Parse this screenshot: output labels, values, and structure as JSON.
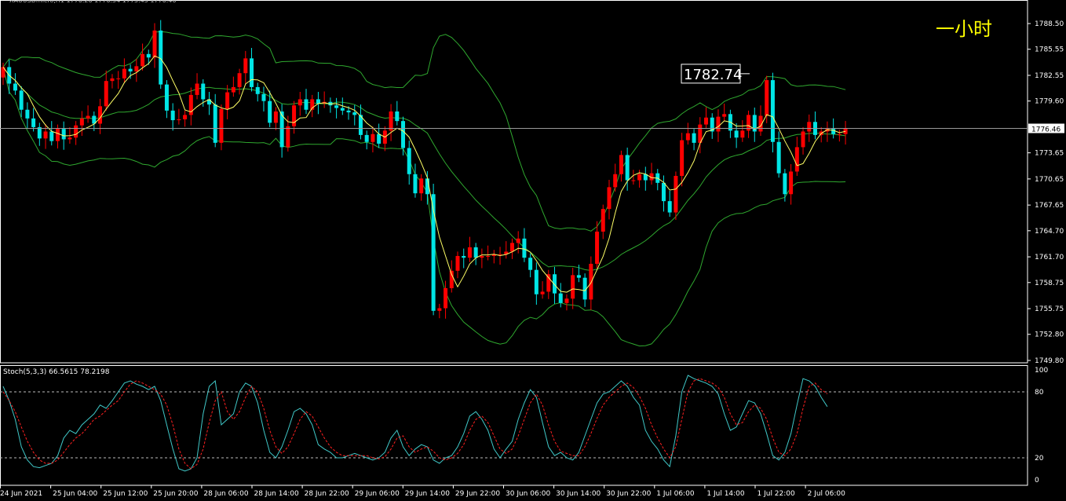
{
  "chart_data": [
    {
      "type": "candlestick",
      "symbol_line": "XAUUSDmicro,H1  1776.26 1776.54 1775.45 1776.46",
      "timeframe_label": "一小时",
      "price_ticks": [
        "1788.50",
        "1785.55",
        "1782.55",
        "1779.60",
        "1776.46",
        "1773.65",
        "1770.65",
        "1767.65",
        "1764.70",
        "1761.70",
        "1758.75",
        "1755.75",
        "1752.80",
        "1749.80"
      ],
      "ylim": [
        1749.8,
        1788.5
      ],
      "current_price": 1776.46,
      "current_price_label": "1776.46",
      "annotation": {
        "label": "1782.74",
        "value": 1782.74
      },
      "time_labels": [
        "24 Jun 2021",
        "25 Jun 04:00",
        "25 Jun 12:00",
        "25 Jun 20:00",
        "28 Jun 06:00",
        "28 Jun 14:00",
        "28 Jun 22:00",
        "29 Jun 06:00",
        "29 Jun 14:00",
        "29 Jun 22:00",
        "30 Jun 06:00",
        "30 Jun 14:00",
        "30 Jun 22:00",
        "1 Jul 06:00",
        "1 Jul 14:00",
        "1 Jul 22:00",
        "2 Jul 06:00"
      ],
      "colors": {
        "bull": "#ff0000",
        "bear": "#00e5e5",
        "bands": "#2fa82f",
        "ma": "#ffff66",
        "grid": "#ffffff"
      },
      "closes": [
        1783.5,
        1781.6,
        1780.8,
        1778.6,
        1777.6,
        1776.6,
        1775.3,
        1776.1,
        1775.0,
        1776.4,
        1775.2,
        1775.4,
        1776.8,
        1777.6,
        1777.9,
        1777.0,
        1779.0,
        1781.9,
        1782.2,
        1782.2,
        1783.3,
        1783.0,
        1783.6,
        1785.0,
        1784.6,
        1787.7,
        1781.5,
        1778.5,
        1777.4,
        1777.5,
        1778.0,
        1780.3,
        1781.6,
        1779.8,
        1779.2,
        1774.8,
        1778.7,
        1780.6,
        1781.2,
        1782.8,
        1784.5,
        1781.2,
        1780.4,
        1779.6,
        1777.1,
        1778.4,
        1774.3,
        1776.7,
        1779.1,
        1779.8,
        1778.6,
        1779.8,
        1779.3,
        1779.5,
        1779.1,
        1778.8,
        1778.5,
        1778.3,
        1778.0,
        1775.7,
        1774.9,
        1775.8,
        1774.7,
        1776.2,
        1778.4,
        1777.3,
        1774.2,
        1771.2,
        1769.0,
        1770.7,
        1768.9,
        1755.5,
        1755.8,
        1758.1,
        1760.1,
        1761.8,
        1761.6,
        1762.8,
        1761.6,
        1761.8,
        1761.8,
        1762.0,
        1762.0,
        1762.3,
        1763.3,
        1763.8,
        1761.6,
        1760.2,
        1757.4,
        1757.7,
        1759.7,
        1757.5,
        1756.4,
        1756.9,
        1759.6,
        1759.3,
        1756.8,
        1760.9,
        1764.6,
        1767.2,
        1769.7,
        1771.2,
        1773.4,
        1770.5,
        1770.5,
        1771.2,
        1770.5,
        1771.3,
        1770.2,
        1768.1,
        1766.8,
        1771.0,
        1775.1,
        1775.9,
        1774.8,
        1776.9,
        1777.7,
        1776.1,
        1777.8,
        1778.1,
        1776.2,
        1775.4,
        1776.2,
        1778.0,
        1776.1,
        1777.9,
        1782.0,
        1774.9,
        1771.3,
        1768.9,
        1771.5,
        1774.3,
        1776.1,
        1777.2,
        1775.7,
        1776.1,
        1776.4,
        1775.8,
        1775.8,
        1776.46
      ],
      "indicator": {
        "name": "Stoch(5,3,3)",
        "header": "Stoch(5,3,3) 66.5615 78.2198",
        "main_value": 66.5615,
        "signal_value": 78.2198,
        "levels": [
          20,
          80
        ],
        "ylim": [
          0,
          100
        ],
        "ticks": [
          "100",
          "80",
          "20",
          "0"
        ],
        "main": [
          85,
          72,
          55,
          30,
          18,
          12,
          11,
          13,
          15,
          22,
          38,
          45,
          42,
          50,
          55,
          60,
          68,
          65,
          72,
          80,
          88,
          90,
          87,
          85,
          82,
          85,
          72,
          50,
          28,
          10,
          8,
          10,
          20,
          60,
          85,
          90,
          50,
          55,
          60,
          80,
          88,
          85,
          70,
          45,
          25,
          20,
          30,
          45,
          62,
          65,
          60,
          50,
          32,
          28,
          25,
          20,
          20,
          22,
          24,
          22,
          20,
          18,
          20,
          25,
          38,
          45,
          30,
          22,
          28,
          32,
          30,
          18,
          15,
          20,
          22,
          30,
          42,
          58,
          62,
          55,
          45,
          28,
          20,
          28,
          35,
          55,
          70,
          82,
          75,
          52,
          30,
          22,
          25,
          20,
          18,
          25,
          40,
          55,
          70,
          78,
          80,
          85,
          90,
          85,
          75,
          68,
          45,
          35,
          28,
          18,
          12,
          40,
          80,
          95,
          92,
          90,
          88,
          85,
          78,
          60,
          45,
          48,
          60,
          72,
          70,
          60,
          42,
          22,
          18,
          25,
          42,
          68,
          92,
          90,
          85,
          75,
          66.5615
        ],
        "signal": [
          80,
          72,
          62,
          48,
          35,
          25,
          18,
          15,
          15,
          18,
          25,
          32,
          38,
          42,
          48,
          55,
          58,
          63,
          68,
          72,
          80,
          87,
          90,
          88,
          85,
          82,
          78,
          68,
          50,
          28,
          15,
          10,
          14,
          28,
          52,
          72,
          80,
          62,
          55,
          62,
          75,
          85,
          80,
          65,
          45,
          30,
          24,
          30,
          42,
          55,
          62,
          58,
          48,
          38,
          30,
          25,
          22,
          22,
          22,
          22,
          22,
          20,
          19,
          21,
          28,
          38,
          40,
          30,
          25,
          28,
          30,
          26,
          20,
          18,
          20,
          24,
          32,
          45,
          55,
          58,
          52,
          40,
          28,
          24,
          28,
          40,
          55,
          70,
          78,
          68,
          50,
          35,
          26,
          24,
          22,
          22,
          30,
          42,
          56,
          68,
          75,
          80,
          85,
          88,
          84,
          76,
          65,
          50,
          38,
          28,
          20,
          30,
          55,
          80,
          90,
          92,
          90,
          88,
          84,
          75,
          60,
          50,
          52,
          62,
          68,
          65,
          55,
          38,
          25,
          22,
          28,
          42,
          65,
          85,
          88,
          82,
          78.2198
        ]
      }
    }
  ]
}
